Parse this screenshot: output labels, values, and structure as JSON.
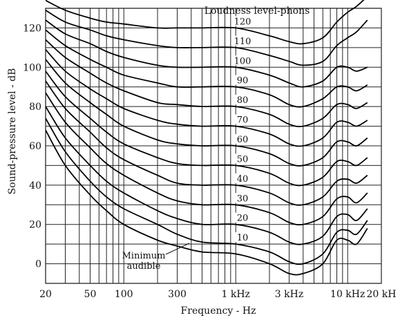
{
  "chart_data": {
    "type": "line",
    "title": "",
    "xlabel": "Frequency - Hz",
    "ylabel": "Sound-pressure level - dB",
    "x_scale": "log",
    "xlim": [
      20,
      20000
    ],
    "ylim": [
      -10,
      130
    ],
    "grid": true,
    "legend_title": "Loudness level-phons",
    "annotation": [
      "Minimum",
      "audible"
    ],
    "x_ticks": [
      {
        "value": 20,
        "label": "20"
      },
      {
        "value": 50,
        "label": "50"
      },
      {
        "value": 100,
        "label": "100"
      },
      {
        "value": 300,
        "label": "300"
      },
      {
        "value": 1000,
        "label": "1 kHz"
      },
      {
        "value": 3000,
        "label": "3 kHz"
      },
      {
        "value": 10000,
        "label": "10 kHz"
      },
      {
        "value": 20000,
        "label": "20 kH"
      }
    ],
    "y_ticks": [
      0,
      20,
      40,
      60,
      80,
      100,
      120
    ],
    "x": [
      20,
      30,
      50,
      70,
      100,
      200,
      300,
      500,
      1000,
      2000,
      3000,
      4000,
      6000,
      8000,
      10000,
      12000,
      15000
    ],
    "series": [
      {
        "name": "Minimum audible",
        "phon_label": "",
        "values": [
          68,
          50,
          35,
          27,
          20,
          12,
          9,
          6,
          5,
          0,
          -5,
          -5,
          0,
          12,
          12,
          10,
          18
        ]
      },
      {
        "name": "10",
        "phon_label": "10",
        "values": [
          74,
          57,
          42,
          34,
          28,
          20,
          15,
          11,
          10,
          6,
          1,
          0,
          5,
          16,
          17,
          15,
          22
        ]
      },
      {
        "name": "20",
        "phon_label": "20",
        "values": [
          80,
          64,
          50,
          42,
          36,
          27,
          23,
          20,
          20,
          16,
          11,
          10,
          14,
          24,
          25,
          22,
          28
        ]
      },
      {
        "name": "30",
        "phon_label": "30",
        "values": [
          87,
          72,
          59,
          51,
          45,
          36,
          32,
          30,
          30,
          26,
          21,
          20,
          24,
          33,
          34,
          31,
          36
        ]
      },
      {
        "name": "40",
        "phon_label": "40",
        "values": [
          93,
          79,
          67,
          59,
          53,
          45,
          41,
          40,
          40,
          36,
          31,
          30,
          34,
          42,
          43,
          41,
          45
        ]
      },
      {
        "name": "50",
        "phon_label": "50",
        "values": [
          98,
          85,
          74,
          67,
          61,
          54,
          51,
          50,
          50,
          46,
          41,
          40,
          44,
          52,
          52,
          50,
          54
        ]
      },
      {
        "name": "60",
        "phon_label": "60",
        "values": [
          104,
          92,
          82,
          76,
          70,
          63,
          61,
          60,
          60,
          56,
          51,
          50,
          54,
          62,
          62,
          60,
          64
        ]
      },
      {
        "name": "70",
        "phon_label": "70",
        "values": [
          109,
          98,
          89,
          84,
          79,
          73,
          71,
          70,
          70,
          66,
          61,
          60,
          64,
          72,
          72,
          70,
          73
        ]
      },
      {
        "name": "80",
        "phon_label": "80",
        "values": [
          114,
          105,
          97,
          92,
          88,
          82,
          81,
          80,
          80,
          76,
          71,
          70,
          74,
          81,
          81,
          79,
          82
        ]
      },
      {
        "name": "90",
        "phon_label": "90",
        "values": [
          119,
          111,
          104,
          100,
          96,
          92,
          90,
          90,
          90,
          86,
          81,
          80,
          84,
          90,
          90,
          88,
          91
        ]
      },
      {
        "name": "100",
        "phon_label": "100",
        "values": [
          124,
          117,
          112,
          108,
          105,
          101,
          100,
          100,
          100,
          96,
          92,
          90,
          93,
          100,
          100,
          98,
          100
        ]
      },
      {
        "name": "110",
        "phon_label": "110",
        "values": [
          129,
          123,
          119,
          116,
          114,
          111,
          110,
          110,
          110,
          106,
          103,
          101,
          103,
          111,
          115,
          118,
          124
        ]
      },
      {
        "name": "120",
        "phon_label": "120",
        "values": [
          134,
          129,
          125,
          123,
          122,
          120,
          120,
          120,
          120,
          116,
          113,
          112,
          115,
          123,
          128,
          131,
          136
        ]
      }
    ]
  }
}
